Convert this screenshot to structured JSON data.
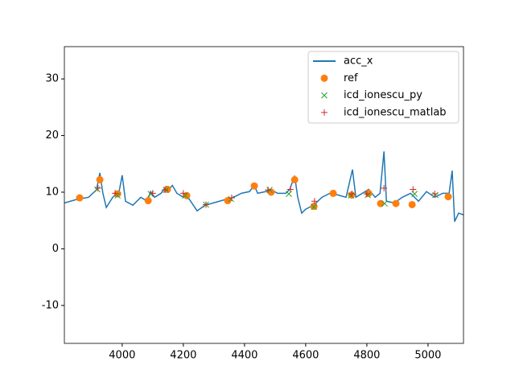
{
  "chart_data": {
    "type": "line",
    "xlim": [
      3811,
      5116
    ],
    "ylim": [
      -16.7,
      35.7
    ],
    "xticks": [
      4000,
      4200,
      4400,
      4600,
      4800,
      5000
    ],
    "yticks": [
      -10,
      0,
      10,
      20,
      30
    ],
    "legend": "upper right",
    "series": [
      {
        "name": "acc_x",
        "color": "#1f77b4",
        "marker": "line",
        "x": [
          3811,
          3850,
          3890,
          3916,
          3927,
          3937,
          3948,
          3969,
          3990,
          4000,
          4011,
          4035,
          4061,
          4082,
          4093,
          4106,
          4127,
          4143,
          4153,
          4164,
          4179,
          4200,
          4219,
          4245,
          4271,
          4298,
          4337,
          4364,
          4390,
          4416,
          4432,
          4443,
          4469,
          4485,
          4508,
          4535,
          4548,
          4564,
          4574,
          4587,
          4600,
          4626,
          4653,
          4679,
          4706,
          4732,
          4753,
          4764,
          4785,
          4806,
          4827,
          4843,
          4856,
          4864,
          4890,
          4916,
          4943,
          4969,
          4995,
          5022,
          5048,
          5069,
          5079,
          5087,
          5100,
          5116
        ],
        "values": [
          8.1,
          8.7,
          9.1,
          10.4,
          13.4,
          9.8,
          7.3,
          9.1,
          10.1,
          13,
          8.4,
          7.7,
          9.1,
          8.4,
          10.1,
          9.1,
          9.8,
          11,
          10.5,
          11.2,
          9.8,
          9.1,
          8.8,
          6.7,
          7.7,
          8.1,
          8.7,
          9.1,
          9.8,
          10.1,
          11.2,
          9.8,
          10.1,
          10.5,
          9.8,
          9.8,
          10.5,
          12.9,
          9.1,
          6.3,
          7,
          7.7,
          9.1,
          9.8,
          9.5,
          9.1,
          14,
          9.1,
          9.8,
          10.5,
          9.1,
          9.8,
          17.2,
          8.4,
          8.1,
          9.1,
          9.8,
          8.4,
          10.1,
          9.1,
          9.8,
          9.8,
          13.8,
          4.8,
          6.3,
          6
        ]
      },
      {
        "name": "ref",
        "color": "#ff7f0e",
        "marker": "circle",
        "x": [
          3861,
          3927,
          3985,
          4085,
          4148,
          4211,
          4345,
          4432,
          4487,
          4564,
          4627,
          4690,
          4750,
          4806,
          4845,
          4895,
          4948,
          5066
        ],
        "values": [
          9,
          12.2,
          9.7,
          8.5,
          10.5,
          9.4,
          8.5,
          11.1,
          10,
          12.2,
          7.5,
          9.8,
          9.5,
          9.8,
          8,
          8,
          7.8,
          9.2
        ]
      },
      {
        "name": "icd_ionescu_py",
        "color": "#2ca02c",
        "marker": "x",
        "x": [
          3919,
          3985,
          4093,
          4143,
          4206,
          4274,
          4356,
          4482,
          4545,
          4627,
          4748,
          4803,
          4858,
          4956,
          5024
        ],
        "values": [
          10.5,
          9.4,
          9.7,
          10.4,
          9.4,
          7.8,
          8.8,
          10.4,
          9.7,
          7.4,
          9.4,
          9.5,
          8,
          9.7,
          9.5
        ]
      },
      {
        "name": "icd_ionescu_matlab",
        "color": "#d62728",
        "marker": "plus",
        "x": [
          3921,
          3977,
          4100,
          4140,
          4200,
          4274,
          4358,
          4477,
          4550,
          4629,
          4751,
          4800,
          4856,
          4951,
          5022
        ],
        "values": [
          10.7,
          9.8,
          9.8,
          10.4,
          9.8,
          7.8,
          9,
          10.4,
          10.5,
          8.4,
          9.7,
          9.7,
          10.7,
          10.5,
          9.7
        ]
      }
    ]
  }
}
